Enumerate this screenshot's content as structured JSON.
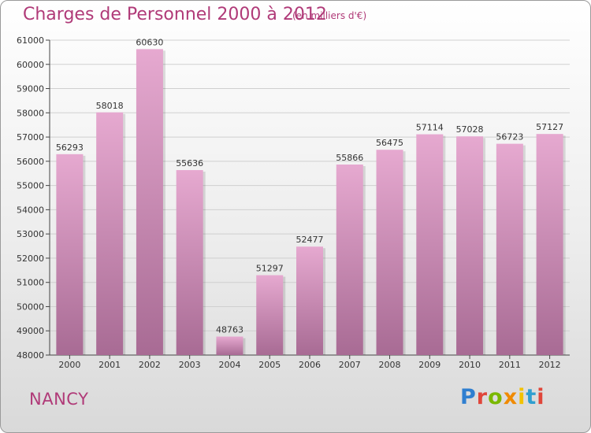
{
  "header": {
    "title": "Charges de Personnel 2000 à 2012",
    "unit_note": "(en milliers d'€)"
  },
  "footer": {
    "city": "NANCY",
    "brand": "Proxiti",
    "brand_colors": [
      "#2f7fd0",
      "#e0463a",
      "#7ab800",
      "#f08a00",
      "#f2c200",
      "#2f9fd0",
      "#e0463a"
    ]
  },
  "colors": {
    "bar_top": "#e6a9d0",
    "bar_bottom": "#a86b94",
    "text": "#b03a78",
    "axis": "#444444"
  },
  "chart_data": {
    "type": "bar",
    "title": "Charges de Personnel 2000 à 2012",
    "categories": [
      "2000",
      "2001",
      "2002",
      "2003",
      "2004",
      "2005",
      "2006",
      "2007",
      "2008",
      "2009",
      "2010",
      "2011",
      "2012"
    ],
    "values": [
      56293,
      58018,
      60630,
      55636,
      48763,
      51297,
      52477,
      55866,
      56475,
      57114,
      57028,
      56723,
      57127
    ],
    "ylim": [
      48000,
      61000
    ],
    "yticks": [
      48000,
      49000,
      50000,
      51000,
      52000,
      53000,
      54000,
      55000,
      56000,
      57000,
      58000,
      59000,
      60000,
      61000
    ],
    "grid": true,
    "legend": "none"
  }
}
